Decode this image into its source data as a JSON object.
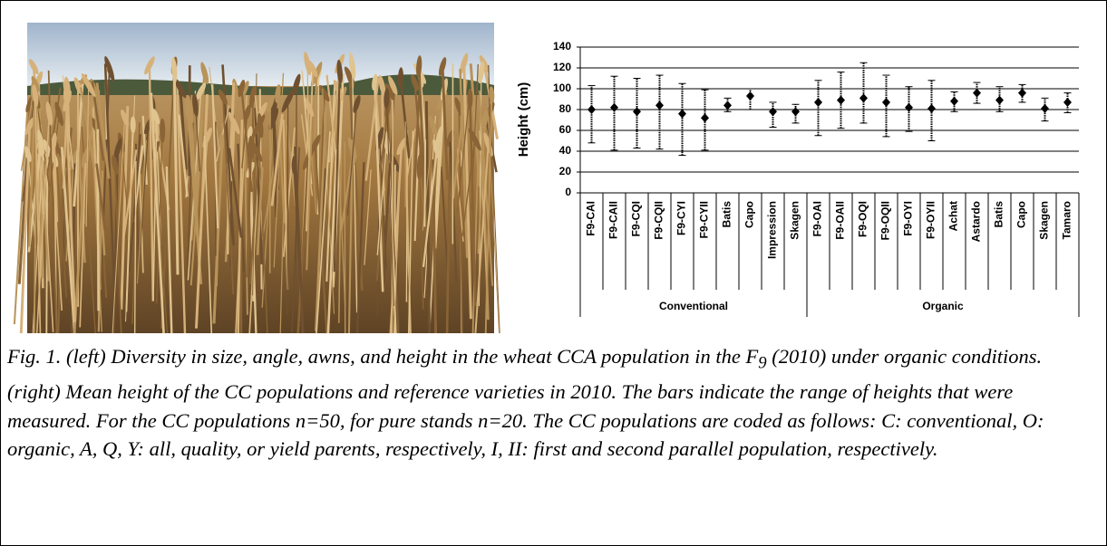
{
  "chart_data": {
    "type": "errorbar",
    "ylabel": "Height (cm)",
    "groups": [
      {
        "label": "Conventional",
        "categories": [
          "F9-CAI",
          "F9-CAII",
          "F9-CQI",
          "F9-CQII",
          "F9-CYI",
          "F9-CYII",
          "Batis",
          "Capo",
          "Impression",
          "Skagen"
        ]
      },
      {
        "label": "Organic",
        "categories": [
          "F9-OAI",
          "F9-OAII",
          "F9-OQI",
          "F9-OQII",
          "F9-OYI",
          "F9-OYII",
          "Achat",
          "Astardo",
          "Batis",
          "Capo",
          "Skagen",
          "Tamaro"
        ]
      }
    ],
    "values": [
      80,
      82,
      78,
      84,
      76,
      72,
      84,
      93,
      78,
      78,
      87,
      89,
      91,
      87,
      82,
      81,
      88,
      96,
      89,
      96,
      81,
      87
    ],
    "lower": [
      48,
      41,
      43,
      42,
      36,
      41,
      78,
      80,
      63,
      67,
      55,
      62,
      67,
      54,
      59,
      50,
      78,
      86,
      78,
      87,
      69,
      77
    ],
    "upper": [
      103,
      112,
      110,
      113,
      105,
      99,
      91,
      100,
      87,
      85,
      108,
      116,
      125,
      113,
      102,
      108,
      97,
      106,
      102,
      104,
      91,
      96
    ],
    "color": "#000000",
    "ylim": [
      0,
      140
    ],
    "yticks": [
      0,
      20,
      40,
      60,
      80,
      100,
      120,
      140
    ],
    "grid": true
  },
  "caption": {
    "before": "Fig. 1. (left) Diversity in size, angle, awns, and height in the wheat CCA population in the F",
    "subscript": "9",
    "after": " (2010) under organic conditions. (right) Mean height of the CC populations and reference varieties in 2010. The bars indicate the range of heights that were measured. For the CC populations n=50, for pure stands n=20. The CC populations are coded as follows: C: conventional, O: organic, A, Q, Y: all, quality, or yield parents, respectively, I, II: first and second parallel population, respectively."
  }
}
